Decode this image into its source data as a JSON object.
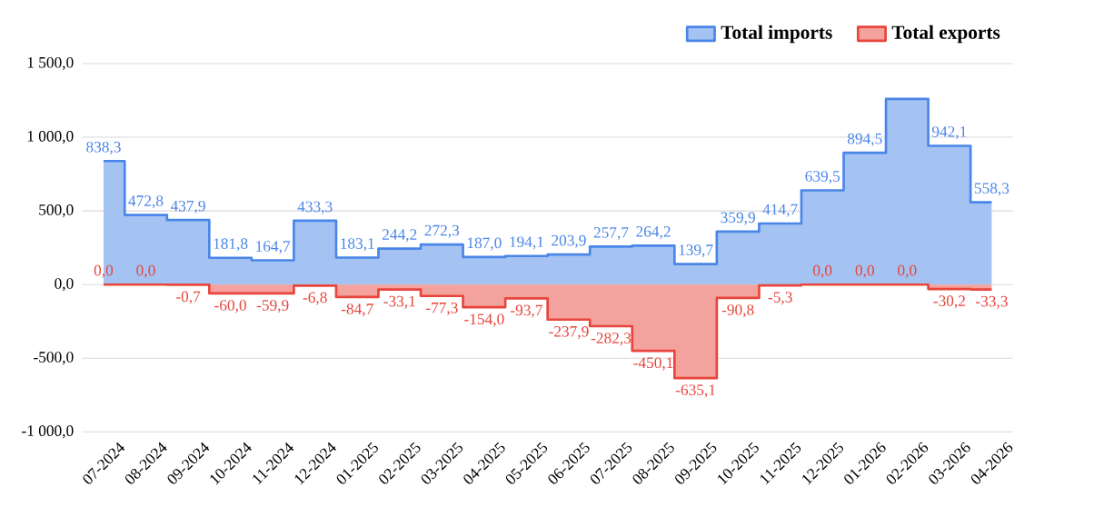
{
  "chart_data": {
    "type": "step",
    "categories": [
      "07-2024",
      "08-2024",
      "09-2024",
      "10-2024",
      "11-2024",
      "12-2024",
      "01-2025",
      "02-2025",
      "03-2025",
      "04-2025",
      "05-2025",
      "06-2025",
      "07-2025",
      "08-2025",
      "09-2025",
      "10-2025",
      "11-2025",
      "12-2025",
      "01-2026",
      "02-2026",
      "03-2026",
      "04-2026"
    ],
    "series": [
      {
        "name": "Total imports",
        "color": "#4a86e8",
        "values": [
          838.3,
          472.8,
          437.9,
          181.8,
          164.7,
          433.3,
          183.1,
          244.2,
          272.3,
          187.0,
          194.1,
          203.9,
          257.7,
          264.2,
          139.7,
          359.9,
          414.7,
          639.5,
          894.5,
          1260,
          942.1,
          558.3
        ],
        "value_labels": [
          "838,3",
          "472,8",
          "437,9",
          "181,8",
          "164,7",
          "433,3",
          "183,1",
          "244,2",
          "272,3",
          "187,0",
          "194,1",
          "203,9",
          "257,7",
          "264,2",
          "139,7",
          "359,9",
          "414,7",
          "639,5",
          "894,5",
          null,
          "942,1",
          "558,3"
        ]
      },
      {
        "name": "Total exports",
        "color": "#e8453c",
        "values": [
          0.0,
          0.0,
          -0.7,
          -60.0,
          -59.9,
          -6.8,
          -84.7,
          -33.1,
          -77.3,
          -154.0,
          -93.7,
          -237.9,
          -282.3,
          -450.1,
          -635.1,
          -90.8,
          -5.3,
          0.0,
          0.0,
          0.0,
          -30.2,
          -33.3
        ],
        "value_labels": [
          "0,0",
          "0,0",
          "-0,7",
          "-60,0",
          "-59,9",
          "-6,8",
          "-84,7",
          "-33,1",
          "-77,3",
          "-154,0",
          "-93,7",
          "-237,9",
          "-282,3",
          "-450,1",
          "-635,1",
          "-90,8",
          "-5,3",
          "0,0",
          "0,0",
          "0,0",
          "-30,2",
          "-33,3"
        ]
      }
    ],
    "ylim": [
      -1000,
      1500
    ],
    "yticks": [
      {
        "value": -1000,
        "label": "-1 000,0"
      },
      {
        "value": -500,
        "label": "-500,0"
      },
      {
        "value": 0,
        "label": "0,0"
      },
      {
        "value": 500,
        "label": "500,0"
      },
      {
        "value": 1000,
        "label": "1 000,0"
      },
      {
        "value": 1500,
        "label": "1 500,0"
      }
    ],
    "grid": "y",
    "legend": "top right"
  }
}
